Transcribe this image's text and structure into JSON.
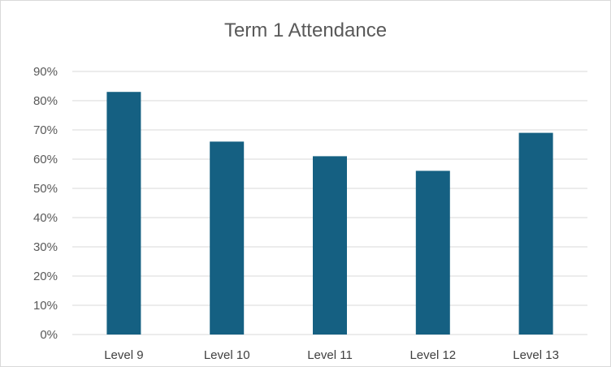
{
  "chart_data": {
    "type": "bar",
    "title": "Term 1 Attendance",
    "xlabel": "",
    "ylabel": "",
    "categories": [
      "Level 9",
      "Level 10",
      "Level 11",
      "Level 12",
      "Level 13"
    ],
    "values": [
      0.83,
      0.66,
      0.61,
      0.56,
      0.69
    ],
    "ylim": [
      0,
      0.9
    ],
    "yticks": [
      "0%",
      "10%",
      "20%",
      "30%",
      "40%",
      "50%",
      "60%",
      "70%",
      "80%",
      "90%"
    ],
    "grid": true,
    "legend": "none",
    "bar_color": "#156082"
  }
}
